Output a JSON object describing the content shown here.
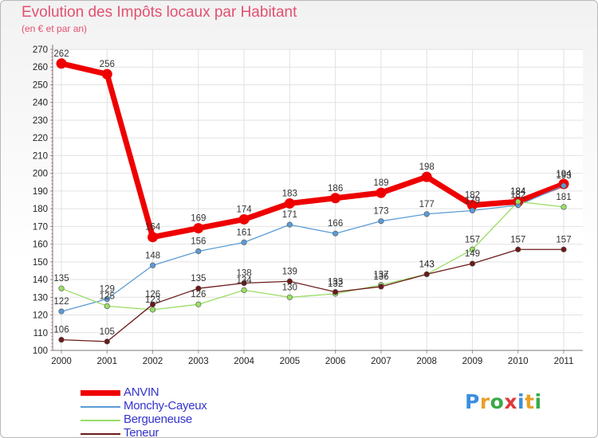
{
  "header": {
    "title": "Evolution des Impôts locaux par Habitant",
    "subtitle": "(en € et par an)"
  },
  "brand": {
    "letters": [
      "P",
      "r",
      "o",
      "x",
      "i",
      "t",
      "i"
    ],
    "colors": [
      "#3b8ee0",
      "#e8a02a",
      "#3aa84a",
      "#e03a3a",
      "#3b8ee0",
      "#e8a02a",
      "#3aa84a"
    ]
  },
  "chart_data": {
    "type": "line",
    "title": "Evolution des Impôts locaux par Habitant",
    "subtitle": "(en € et par an)",
    "xlabel": "",
    "ylabel": "",
    "categories": [
      "2000",
      "2001",
      "2002",
      "2003",
      "2004",
      "2005",
      "2006",
      "2007",
      "2008",
      "2009",
      "2010",
      "2011"
    ],
    "ylim": [
      100,
      270
    ],
    "yticks": [
      100,
      110,
      120,
      130,
      140,
      150,
      160,
      170,
      180,
      190,
      200,
      210,
      220,
      230,
      240,
      250,
      260,
      270
    ],
    "grid": true,
    "legend_position": "bottom-left",
    "series": [
      {
        "name": "ANVIN",
        "color": "#ee0000",
        "emphasis": true,
        "values": [
          262,
          256,
          164,
          169,
          174,
          183,
          186,
          189,
          198,
          182,
          184,
          194
        ]
      },
      {
        "name": "Monchy-Cayeux",
        "color": "#5b9bd5",
        "emphasis": false,
        "values": [
          122,
          129,
          148,
          156,
          161,
          171,
          166,
          173,
          177,
          179,
          182,
          193
        ]
      },
      {
        "name": "Bergueneuse",
        "color": "#99dd66",
        "emphasis": false,
        "values": [
          135,
          125,
          123,
          126,
          134,
          130,
          132,
          137,
          143,
          157,
          184,
          181
        ]
      },
      {
        "name": "Teneur",
        "color": "#6b1a1a",
        "emphasis": false,
        "values": [
          106,
          105,
          126,
          135,
          138,
          139,
          133,
          136,
          143,
          149,
          157,
          157
        ]
      }
    ]
  }
}
